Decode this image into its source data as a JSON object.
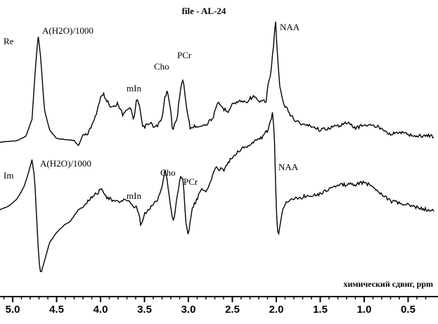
{
  "chart_data": {
    "type": "line",
    "title": "file - AL-24",
    "xlabel": "химический сдвиг, ppm",
    "xlim": [
      5.2,
      0.2
    ],
    "x_reversed": true,
    "ticks": [
      "5.0",
      "4.5",
      "4.0",
      "3.5",
      "3.0",
      "2.5",
      "2.0",
      "1.5",
      "1.0",
      "0.5"
    ],
    "tick_values": [
      5.0,
      4.5,
      4.0,
      3.5,
      3.0,
      2.5,
      2.0,
      1.5,
      1.0,
      0.5
    ],
    "series": [
      {
        "name": "Re",
        "points": [
          [
            5.2,
            -0.02
          ],
          [
            4.95,
            0.0
          ],
          [
            4.85,
            0.04
          ],
          [
            4.78,
            0.2
          ],
          [
            4.74,
            0.7
          ],
          [
            4.71,
            1.0
          ],
          [
            4.68,
            0.78
          ],
          [
            4.64,
            0.3
          ],
          [
            4.58,
            0.1
          ],
          [
            4.5,
            0.02
          ],
          [
            4.4,
            0.01
          ],
          [
            4.3,
            0.0
          ],
          [
            4.25,
            -0.05
          ],
          [
            4.2,
            0.06
          ],
          [
            4.15,
            0.05
          ],
          [
            4.1,
            0.15
          ],
          [
            4.05,
            0.25
          ],
          [
            4.0,
            0.4
          ],
          [
            3.97,
            0.45
          ],
          [
            3.93,
            0.38
          ],
          [
            3.88,
            0.32
          ],
          [
            3.8,
            0.35
          ],
          [
            3.75,
            0.25
          ],
          [
            3.7,
            0.3
          ],
          [
            3.66,
            0.3
          ],
          [
            3.62,
            0.2
          ],
          [
            3.59,
            0.38
          ],
          [
            3.56,
            0.35
          ],
          [
            3.52,
            0.12
          ],
          [
            3.47,
            0.15
          ],
          [
            3.42,
            0.16
          ],
          [
            3.38,
            0.12
          ],
          [
            3.35,
            0.15
          ],
          [
            3.3,
            0.2
          ],
          [
            3.27,
            0.4
          ],
          [
            3.24,
            0.47
          ],
          [
            3.21,
            0.35
          ],
          [
            3.18,
            0.1
          ],
          [
            3.13,
            0.2
          ],
          [
            3.09,
            0.5
          ],
          [
            3.06,
            0.58
          ],
          [
            3.03,
            0.36
          ],
          [
            2.98,
            0.12
          ],
          [
            2.9,
            0.14
          ],
          [
            2.8,
            0.15
          ],
          [
            2.72,
            0.22
          ],
          [
            2.66,
            0.36
          ],
          [
            2.6,
            0.3
          ],
          [
            2.55,
            0.28
          ],
          [
            2.5,
            0.35
          ],
          [
            2.45,
            0.36
          ],
          [
            2.4,
            0.38
          ],
          [
            2.35,
            0.36
          ],
          [
            2.3,
            0.4
          ],
          [
            2.25,
            0.42
          ],
          [
            2.2,
            0.36
          ],
          [
            2.15,
            0.38
          ],
          [
            2.12,
            0.35
          ],
          [
            2.1,
            0.5
          ],
          [
            2.06,
            0.65
          ],
          [
            2.03,
            0.92
          ],
          [
            2.01,
            1.15
          ],
          [
            1.99,
            0.85
          ],
          [
            1.96,
            0.5
          ],
          [
            1.92,
            0.35
          ],
          [
            1.88,
            0.3
          ],
          [
            1.8,
            0.2
          ],
          [
            1.75,
            0.18
          ],
          [
            1.7,
            0.15
          ],
          [
            1.6,
            0.14
          ],
          [
            1.5,
            0.1
          ],
          [
            1.4,
            0.12
          ],
          [
            1.3,
            0.14
          ],
          [
            1.2,
            0.17
          ],
          [
            1.1,
            0.12
          ],
          [
            1.0,
            0.15
          ],
          [
            0.9,
            0.14
          ],
          [
            0.8,
            0.12
          ],
          [
            0.7,
            0.06
          ],
          [
            0.6,
            0.08
          ],
          [
            0.5,
            0.06
          ],
          [
            0.4,
            0.04
          ],
          [
            0.3,
            0.05
          ],
          [
            0.2,
            0.04
          ]
        ]
      },
      {
        "name": "Im",
        "points": [
          [
            5.2,
            -0.02
          ],
          [
            5.05,
            0.03
          ],
          [
            4.95,
            0.1
          ],
          [
            4.87,
            0.22
          ],
          [
            4.82,
            0.35
          ],
          [
            4.78,
            0.48
          ],
          [
            4.75,
            0.3
          ],
          [
            4.72,
            -0.2
          ],
          [
            4.7,
            -0.5
          ],
          [
            4.68,
            -0.62
          ],
          [
            4.64,
            -0.5
          ],
          [
            4.58,
            -0.32
          ],
          [
            4.5,
            -0.22
          ],
          [
            4.45,
            -0.18
          ],
          [
            4.4,
            -0.14
          ],
          [
            4.35,
            -0.12
          ],
          [
            4.3,
            -0.06
          ],
          [
            4.25,
            0.0
          ],
          [
            4.2,
            0.02
          ],
          [
            4.15,
            0.08
          ],
          [
            4.05,
            0.15
          ],
          [
            3.98,
            0.2
          ],
          [
            3.93,
            0.12
          ],
          [
            3.85,
            0.08
          ],
          [
            3.8,
            0.07
          ],
          [
            3.72,
            0.1
          ],
          [
            3.66,
            0.06
          ],
          [
            3.62,
            0.0
          ],
          [
            3.6,
            0.04
          ],
          [
            3.56,
            -0.06
          ],
          [
            3.54,
            -0.16
          ],
          [
            3.5,
            -0.05
          ],
          [
            3.45,
            0.0
          ],
          [
            3.4,
            0.05
          ],
          [
            3.35,
            0.1
          ],
          [
            3.3,
            0.22
          ],
          [
            3.27,
            0.38
          ],
          [
            3.24,
            0.28
          ],
          [
            3.2,
            0.0
          ],
          [
            3.17,
            -0.12
          ],
          [
            3.13,
            0.12
          ],
          [
            3.09,
            0.32
          ],
          [
            3.06,
            0.28
          ],
          [
            3.03,
            -0.1
          ],
          [
            3.0,
            -0.25
          ],
          [
            2.96,
            0.0
          ],
          [
            2.9,
            0.1
          ],
          [
            2.85,
            0.2
          ],
          [
            2.78,
            0.18
          ],
          [
            2.72,
            0.35
          ],
          [
            2.68,
            0.4
          ],
          [
            2.6,
            0.38
          ],
          [
            2.55,
            0.45
          ],
          [
            2.5,
            0.5
          ],
          [
            2.45,
            0.55
          ],
          [
            2.4,
            0.58
          ],
          [
            2.3,
            0.62
          ],
          [
            2.2,
            0.68
          ],
          [
            2.15,
            0.7
          ],
          [
            2.1,
            0.76
          ],
          [
            2.06,
            0.85
          ],
          [
            2.04,
            0.94
          ],
          [
            2.02,
            0.65
          ],
          [
            2.0,
            0.0
          ],
          [
            1.98,
            -0.28
          ],
          [
            1.96,
            -0.15
          ],
          [
            1.93,
            0.0
          ],
          [
            1.88,
            0.08
          ],
          [
            1.8,
            0.1
          ],
          [
            1.7,
            0.12
          ],
          [
            1.6,
            0.14
          ],
          [
            1.5,
            0.15
          ],
          [
            1.4,
            0.2
          ],
          [
            1.3,
            0.23
          ],
          [
            1.2,
            0.24
          ],
          [
            1.1,
            0.24
          ],
          [
            1.0,
            0.26
          ],
          [
            0.9,
            0.22
          ],
          [
            0.8,
            0.15
          ],
          [
            0.7,
            0.08
          ],
          [
            0.6,
            0.06
          ],
          [
            0.5,
            0.04
          ],
          [
            0.4,
            0.02
          ],
          [
            0.3,
            0.0
          ],
          [
            0.2,
            -0.02
          ]
        ]
      }
    ],
    "annotations": {
      "re": {
        "series_label": "Re",
        "water": "A(H2O)/1000",
        "mIn": "mIn",
        "Cho": "Cho",
        "PCr": "PCr",
        "NAA": "NAA"
      },
      "im": {
        "series_label": "Im",
        "water": "A(H2O)/1000",
        "mIn": "mIn",
        "Cho": "Cho",
        "PCr": "PCr",
        "NAA": "NAA"
      }
    }
  }
}
